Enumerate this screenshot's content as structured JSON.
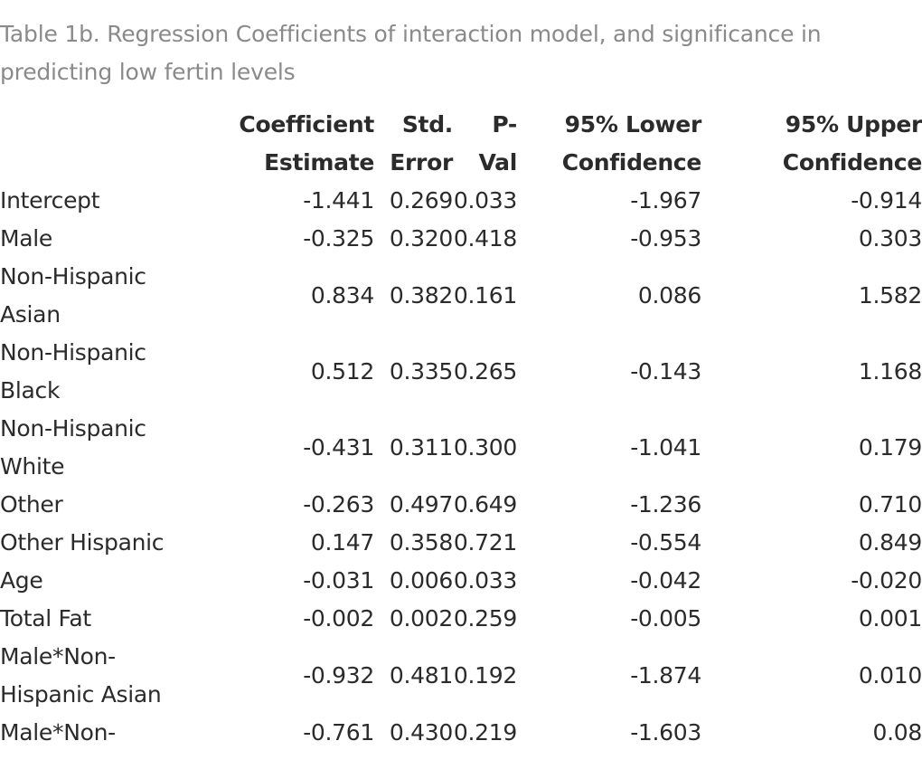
{
  "caption": "Table 1b. Regression Coefficients of interaction model, and significance in predicting low fertin levels",
  "table": {
    "headers": {
      "coef": [
        "Coefficient",
        "Estimate"
      ],
      "se": [
        "Std.",
        "Error"
      ],
      "p": [
        "P-",
        "Val"
      ],
      "lower": [
        "95% Lower",
        "Confidence"
      ],
      "upper": [
        "95% Upper",
        "Confidence"
      ]
    },
    "rows": [
      {
        "label": "Intercept",
        "coef": "-1.441",
        "se": "0.269",
        "p": "0.033",
        "lower": "-1.967",
        "upper": "-0.914"
      },
      {
        "label": "Male",
        "coef": "-0.325",
        "se": "0.320",
        "p": "0.418",
        "lower": "-0.953",
        "upper": "0.303"
      },
      {
        "label": "Non-Hispanic Asian",
        "coef": "0.834",
        "se": "0.382",
        "p": "0.161",
        "lower": "0.086",
        "upper": "1.582"
      },
      {
        "label": "Non-Hispanic Black",
        "coef": "0.512",
        "se": "0.335",
        "p": "0.265",
        "lower": "-0.143",
        "upper": "1.168"
      },
      {
        "label": "Non-Hispanic White",
        "coef": "-0.431",
        "se": "0.311",
        "p": "0.300",
        "lower": "-1.041",
        "upper": "0.179"
      },
      {
        "label": "Other",
        "coef": "-0.263",
        "se": "0.497",
        "p": "0.649",
        "lower": "-1.236",
        "upper": "0.710"
      },
      {
        "label": "Other Hispanic",
        "coef": "0.147",
        "se": "0.358",
        "p": "0.721",
        "lower": "-0.554",
        "upper": "0.849"
      },
      {
        "label": "Age",
        "coef": "-0.031",
        "se": "0.006",
        "p": "0.033",
        "lower": "-0.042",
        "upper": "-0.020"
      },
      {
        "label": "Total Fat",
        "coef": "-0.002",
        "se": "0.002",
        "p": "0.259",
        "lower": "-0.005",
        "upper": "0.001"
      },
      {
        "label": "Male*Non-Hispanic Asian",
        "coef": "-0.932",
        "se": "0.481",
        "p": "0.192",
        "lower": "-1.874",
        "upper": "0.010"
      },
      {
        "label": "Male*Non-",
        "coef": "-0.761",
        "se": "0.430",
        "p": "0.219",
        "lower": "-1.603",
        "upper": "0.08"
      }
    ]
  }
}
